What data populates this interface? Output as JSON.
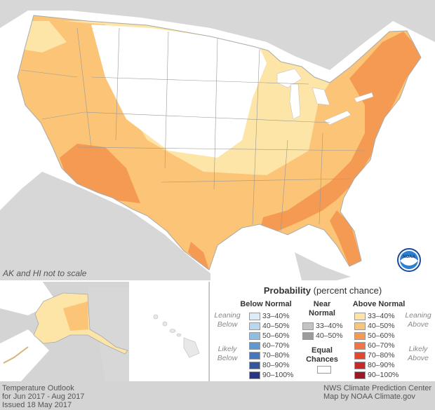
{
  "note": "AK and HI not to scale",
  "legend": {
    "title_bold": "Probability",
    "title_rest": " (percent chance)",
    "below_normal": {
      "label": "Below Normal",
      "leaning": "Leaning Below",
      "likely": "Likely Below",
      "rows": [
        {
          "label": "33–40%",
          "color": "#dcecf9"
        },
        {
          "label": "40–50%",
          "color": "#b9d7ef"
        },
        {
          "label": "50–60%",
          "color": "#8ebde6"
        },
        {
          "label": "60–70%",
          "color": "#5f99d2"
        },
        {
          "label": "70–80%",
          "color": "#4577bc"
        },
        {
          "label": "80–90%",
          "color": "#33569f"
        },
        {
          "label": "90–100%",
          "color": "#2a3587"
        }
      ]
    },
    "near_normal": {
      "label_1": "Near",
      "label_2": "Normal",
      "rows": [
        {
          "label": "33–40%",
          "color": "#c3c3c3"
        },
        {
          "label": "40–50%",
          "color": "#9c9c9c"
        }
      ]
    },
    "equal_chances": {
      "label_1": "Equal",
      "label_2": "Chances",
      "color": "#ffffff"
    },
    "above_normal": {
      "label": "Above Normal",
      "leaning": "Leaning Above",
      "likely": "Likely Above",
      "rows": [
        {
          "label": "33–40%",
          "color": "#fde5a8"
        },
        {
          "label": "40–50%",
          "color": "#fbc477"
        },
        {
          "label": "50–60%",
          "color": "#f59a52"
        },
        {
          "label": "60–70%",
          "color": "#ef7641"
        },
        {
          "label": "70–80%",
          "color": "#e34630"
        },
        {
          "label": "80–90%",
          "color": "#c42a29"
        },
        {
          "label": "90–100%",
          "color": "#9c1726"
        }
      ]
    }
  },
  "footer_left": {
    "line1": "Temperature Outlook",
    "line2": "for Jun 2017 - Aug 2017",
    "line3": "Issued 18 May 2017"
  },
  "footer_right": {
    "line1": "NWS Climate Prediction Center",
    "line2": "Map by NOAA Climate.gov"
  },
  "logo": {
    "text": "NOAA"
  },
  "colors": {
    "ocean": "#ffffff",
    "land_bg": "#d4d4d4",
    "equal_chances": "#ffffff",
    "leaning_above": "#fde5a8",
    "above_40_50": "#fbc477",
    "above_50_60": "#f59a52"
  }
}
